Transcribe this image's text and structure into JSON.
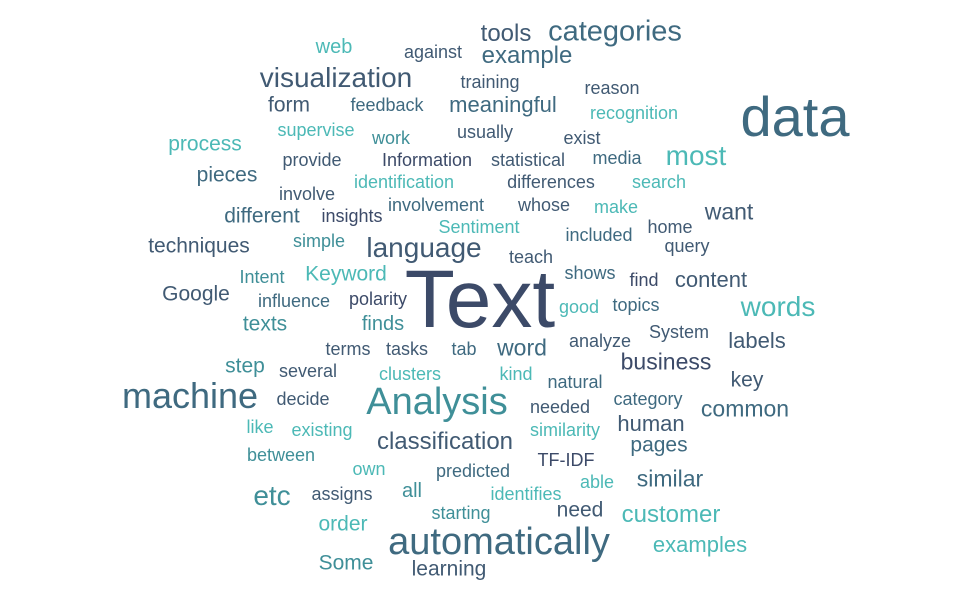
{
  "palette": {
    "dark": "#3c4a68",
    "slate": "#415a73",
    "steel": "#3f6a80",
    "teal": "#3f8f98",
    "aqua": "#4cb9b6"
  },
  "words": [
    {
      "text": "Text",
      "color": "dark"
    },
    {
      "text": "data",
      "color": "steel"
    },
    {
      "text": "automatically",
      "color": "steel"
    },
    {
      "text": "Analysis",
      "color": "teal"
    },
    {
      "text": "machine",
      "color": "steel"
    },
    {
      "text": "categories",
      "color": "steel"
    },
    {
      "text": "visualization",
      "color": "slate"
    },
    {
      "text": "language",
      "color": "slate"
    },
    {
      "text": "most",
      "color": "aqua"
    },
    {
      "text": "words",
      "color": "aqua"
    },
    {
      "text": "etc",
      "color": "teal"
    },
    {
      "text": "classification",
      "color": "slate"
    },
    {
      "text": "customer",
      "color": "aqua"
    },
    {
      "text": "example",
      "color": "steel"
    },
    {
      "text": "tools",
      "color": "slate"
    },
    {
      "text": "want",
      "color": "slate"
    },
    {
      "text": "business",
      "color": "dark"
    },
    {
      "text": "common",
      "color": "steel"
    },
    {
      "text": "similar",
      "color": "steel"
    },
    {
      "text": "word",
      "color": "steel"
    },
    {
      "text": "meaningful",
      "color": "steel"
    },
    {
      "text": "content",
      "color": "slate"
    },
    {
      "text": "labels",
      "color": "slate"
    },
    {
      "text": "human",
      "color": "slate"
    },
    {
      "text": "examples",
      "color": "aqua"
    },
    {
      "text": "Keyword",
      "color": "aqua"
    },
    {
      "text": "process",
      "color": "aqua"
    },
    {
      "text": "pieces",
      "color": "steel"
    },
    {
      "text": "different",
      "color": "steel"
    },
    {
      "text": "techniques",
      "color": "slate"
    },
    {
      "text": "Google",
      "color": "slate"
    },
    {
      "text": "form",
      "color": "slate"
    },
    {
      "text": "texts",
      "color": "teal"
    },
    {
      "text": "step",
      "color": "teal"
    },
    {
      "text": "key",
      "color": "slate"
    },
    {
      "text": "pages",
      "color": "steel"
    },
    {
      "text": "order",
      "color": "aqua"
    },
    {
      "text": "Some",
      "color": "teal"
    },
    {
      "text": "learning",
      "color": "slate"
    },
    {
      "text": "need",
      "color": "slate"
    },
    {
      "text": "web",
      "color": "aqua"
    },
    {
      "text": "finds",
      "color": "teal"
    },
    {
      "text": "all",
      "color": "teal"
    },
    {
      "text": "against",
      "color": "slate"
    },
    {
      "text": "training",
      "color": "slate"
    },
    {
      "text": "reason",
      "color": "slate"
    },
    {
      "text": "feedback",
      "color": "steel"
    },
    {
      "text": "recognition",
      "color": "aqua"
    },
    {
      "text": "supervise",
      "color": "aqua"
    },
    {
      "text": "work",
      "color": "teal"
    },
    {
      "text": "usually",
      "color": "slate"
    },
    {
      "text": "exist",
      "color": "slate"
    },
    {
      "text": "provide",
      "color": "slate"
    },
    {
      "text": "Information",
      "color": "dark"
    },
    {
      "text": "statistical",
      "color": "slate"
    },
    {
      "text": "media",
      "color": "steel"
    },
    {
      "text": "involve",
      "color": "slate"
    },
    {
      "text": "identification",
      "color": "aqua"
    },
    {
      "text": "differences",
      "color": "slate"
    },
    {
      "text": "search",
      "color": "aqua"
    },
    {
      "text": "insights",
      "color": "dark"
    },
    {
      "text": "involvement",
      "color": "steel"
    },
    {
      "text": "whose",
      "color": "slate"
    },
    {
      "text": "make",
      "color": "aqua"
    },
    {
      "text": "Sentiment",
      "color": "aqua"
    },
    {
      "text": "home",
      "color": "slate"
    },
    {
      "text": "simple",
      "color": "teal"
    },
    {
      "text": "included",
      "color": "steel"
    },
    {
      "text": "query",
      "color": "slate"
    },
    {
      "text": "teach",
      "color": "slate"
    },
    {
      "text": "Intent",
      "color": "teal"
    },
    {
      "text": "shows",
      "color": "steel"
    },
    {
      "text": "find",
      "color": "dark"
    },
    {
      "text": "influence",
      "color": "steel"
    },
    {
      "text": "polarity",
      "color": "dark"
    },
    {
      "text": "good",
      "color": "aqua"
    },
    {
      "text": "topics",
      "color": "steel"
    },
    {
      "text": "System",
      "color": "slate"
    },
    {
      "text": "analyze",
      "color": "slate"
    },
    {
      "text": "terms",
      "color": "slate"
    },
    {
      "text": "tasks",
      "color": "slate"
    },
    {
      "text": "tab",
      "color": "steel"
    },
    {
      "text": "several",
      "color": "slate"
    },
    {
      "text": "clusters",
      "color": "aqua"
    },
    {
      "text": "kind",
      "color": "aqua"
    },
    {
      "text": "natural",
      "color": "steel"
    },
    {
      "text": "decide",
      "color": "slate"
    },
    {
      "text": "needed",
      "color": "slate"
    },
    {
      "text": "category",
      "color": "steel"
    },
    {
      "text": "like",
      "color": "aqua"
    },
    {
      "text": "existing",
      "color": "aqua"
    },
    {
      "text": "similarity",
      "color": "aqua"
    },
    {
      "text": "between",
      "color": "teal"
    },
    {
      "text": "own",
      "color": "aqua"
    },
    {
      "text": "predicted",
      "color": "steel"
    },
    {
      "text": "TF-IDF",
      "color": "dark"
    },
    {
      "text": "assigns",
      "color": "slate"
    },
    {
      "text": "identifies",
      "color": "aqua"
    },
    {
      "text": "able",
      "color": "aqua"
    },
    {
      "text": "starting",
      "color": "teal"
    }
  ]
}
